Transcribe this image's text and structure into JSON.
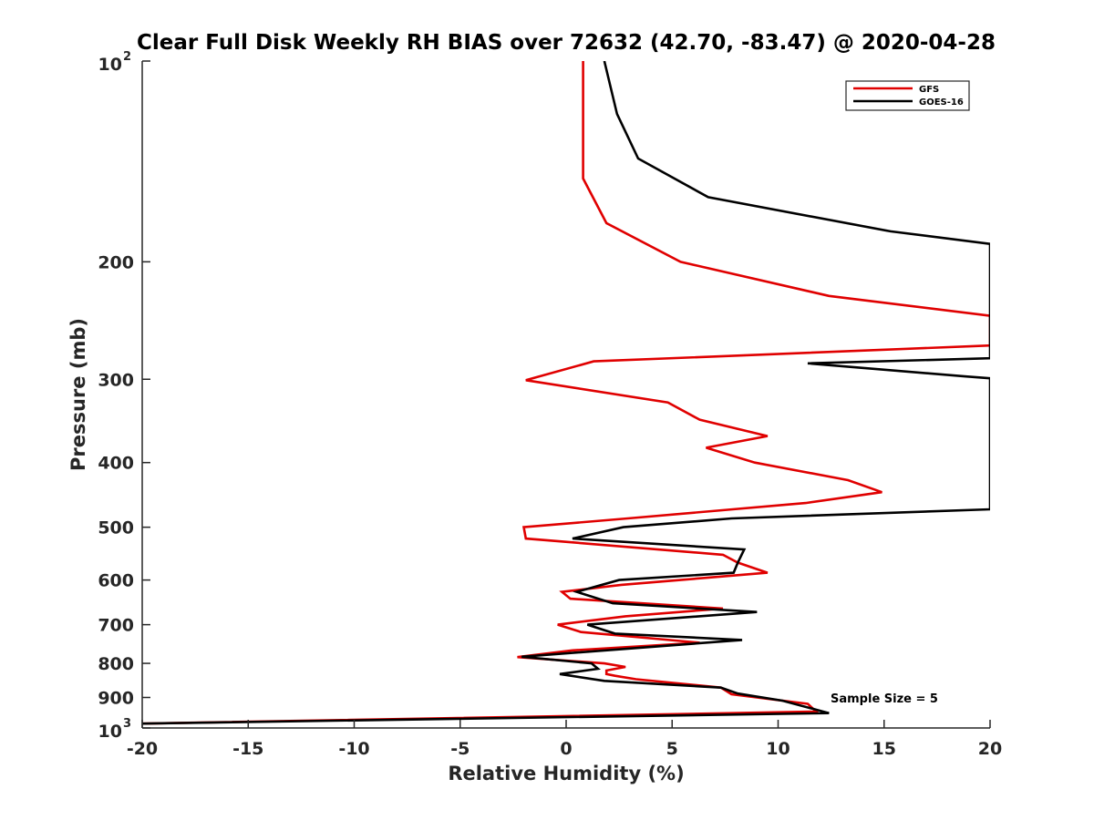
{
  "chart_data": {
    "type": "line",
    "title": "Clear Full Disk Weekly RH BIAS over 72632 (42.70, -83.47) @ 2020-04-28",
    "xlabel": "Relative Humidity (%)",
    "ylabel": "Pressure (mb)",
    "xlim": [
      -20,
      20
    ],
    "ylim": [
      100,
      1000
    ],
    "y_scale": "log",
    "y_reversed": true,
    "x_ticks": [
      "-20",
      "-15",
      "-10",
      "-5",
      "0",
      "5",
      "10",
      "15",
      "20"
    ],
    "y_ticks": [
      {
        "value": 100,
        "base": "10",
        "exp": "2"
      },
      {
        "value": 200,
        "label": "200"
      },
      {
        "value": 300,
        "label": "300"
      },
      {
        "value": 400,
        "label": "400"
      },
      {
        "value": 500,
        "label": "500"
      },
      {
        "value": 600,
        "label": "600"
      },
      {
        "value": 700,
        "label": "700"
      },
      {
        "value": 800,
        "label": "800"
      },
      {
        "value": 900,
        "label": "900"
      },
      {
        "value": 1000,
        "base": "10",
        "exp": "3"
      }
    ],
    "legend_position": "top-right",
    "annotation": "Sample Size = 5",
    "grid": false,
    "series": [
      {
        "name": "GFS",
        "color": "#e00000",
        "points": [
          [
            0.8,
            100
          ],
          [
            0.8,
            125
          ],
          [
            0.8,
            150
          ],
          [
            1.9,
            175
          ],
          [
            5.4,
            200
          ],
          [
            12.4,
            225
          ],
          [
            20.0,
            241
          ],
          [
            20.0,
            267
          ],
          [
            1.3,
            282
          ],
          [
            -1.9,
            301
          ],
          [
            4.8,
            325
          ],
          [
            6.3,
            345
          ],
          [
            9.5,
            365
          ],
          [
            6.6,
            380
          ],
          [
            8.9,
            400
          ],
          [
            13.3,
            425
          ],
          [
            14.9,
            443
          ],
          [
            11.3,
            460
          ],
          [
            2.9,
            485
          ],
          [
            -2.0,
            500
          ],
          [
            -1.9,
            520
          ],
          [
            7.4,
            550
          ],
          [
            8.1,
            565
          ],
          [
            9.5,
            585
          ],
          [
            2.6,
            610
          ],
          [
            -0.2,
            625
          ],
          [
            0.2,
            640
          ],
          [
            7.4,
            662
          ],
          [
            2.8,
            680
          ],
          [
            -0.4,
            700
          ],
          [
            0.7,
            718
          ],
          [
            6.3,
            745
          ],
          [
            0.3,
            765
          ],
          [
            -2.3,
            783
          ],
          [
            1.8,
            800
          ],
          [
            2.8,
            810
          ],
          [
            1.9,
            820
          ],
          [
            1.9,
            830
          ],
          [
            2.3,
            835
          ],
          [
            3.3,
            845
          ],
          [
            7.3,
            870
          ],
          [
            7.8,
            890
          ],
          [
            11.4,
            920
          ],
          [
            11.8,
            945
          ],
          [
            -20.0,
            985
          ]
        ]
      },
      {
        "name": "GOES-16",
        "color": "#000000",
        "points": [
          [
            1.8,
            100
          ],
          [
            2.4,
            120
          ],
          [
            3.4,
            140
          ],
          [
            6.7,
            160
          ],
          [
            15.3,
            180
          ],
          [
            20.0,
            188
          ],
          [
            20.0,
            279
          ],
          [
            11.4,
            284
          ],
          [
            18.8,
            297
          ],
          [
            20.0,
            299
          ],
          [
            20.0,
            470
          ],
          [
            7.8,
            485
          ],
          [
            2.7,
            500
          ],
          [
            0.3,
            520
          ],
          [
            8.4,
            540
          ],
          [
            8.1,
            565
          ],
          [
            7.9,
            585
          ],
          [
            2.5,
            600
          ],
          [
            0.5,
            625
          ],
          [
            2.2,
            650
          ],
          [
            9.0,
            670
          ],
          [
            1.0,
            700
          ],
          [
            2.3,
            722
          ],
          [
            8.3,
            738
          ],
          [
            -2.1,
            782
          ],
          [
            1.2,
            800
          ],
          [
            1.5,
            815
          ],
          [
            -0.3,
            830
          ],
          [
            1.8,
            850
          ],
          [
            7.3,
            870
          ],
          [
            8.1,
            888
          ],
          [
            10.2,
            910
          ],
          [
            12.4,
            950
          ],
          [
            -20.0,
            985
          ]
        ]
      }
    ]
  }
}
